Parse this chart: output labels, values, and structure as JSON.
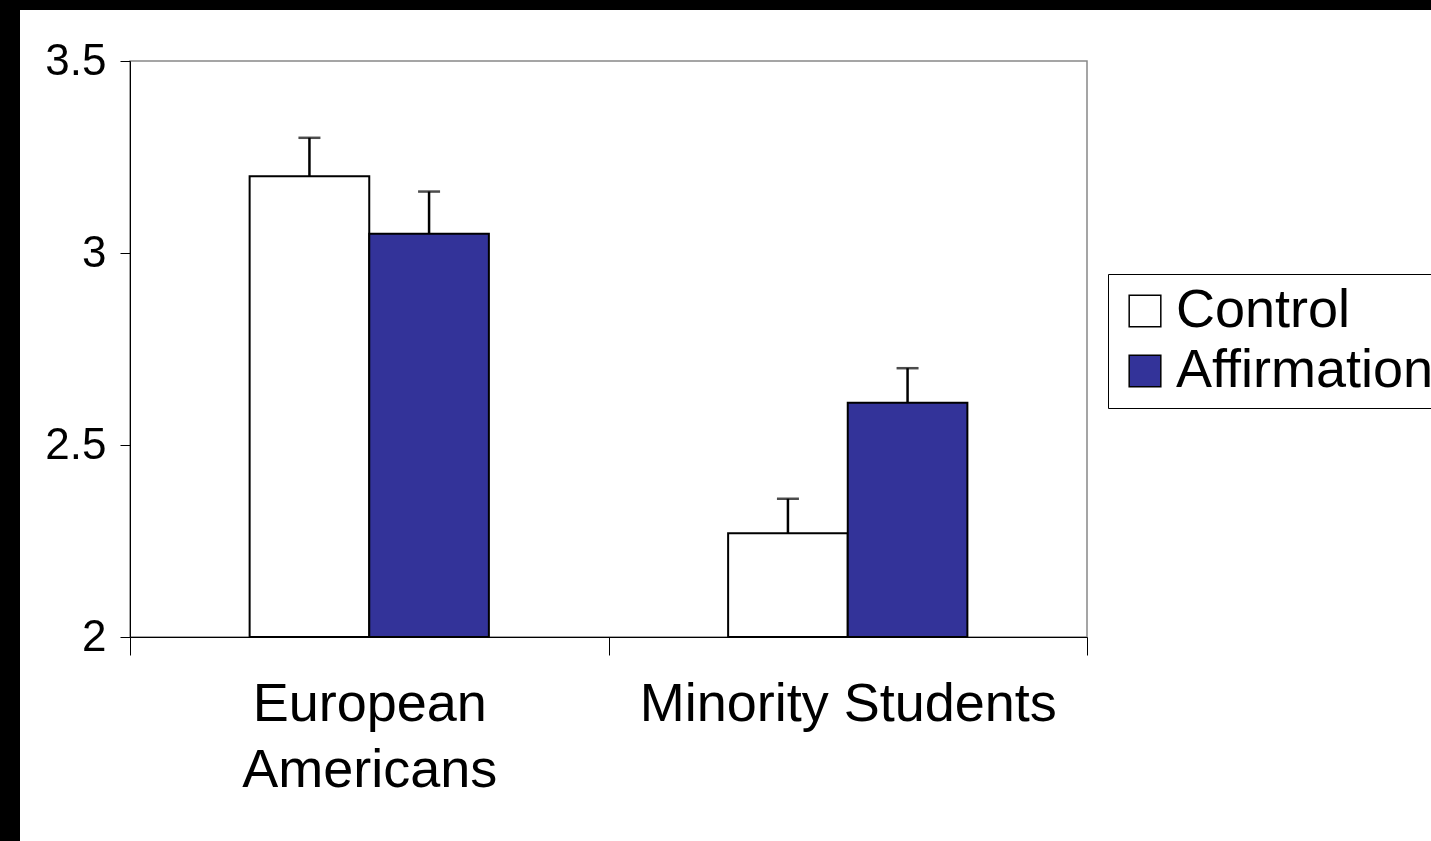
{
  "chart_data": {
    "type": "bar",
    "categories": [
      "European Americans",
      "Minority Students"
    ],
    "series": [
      {
        "name": "Control",
        "color": "#ffffff",
        "values": [
          3.2,
          2.27
        ],
        "errors": [
          [
            3.2,
            3.3
          ],
          [
            2.27,
            2.36
          ]
        ]
      },
      {
        "name": "Affirmation",
        "color": "#333399",
        "values": [
          3.05,
          2.61
        ],
        "errors": [
          [
            3.05,
            3.16
          ],
          [
            2.61,
            2.7
          ]
        ]
      }
    ],
    "ylim": [
      2,
      3.5
    ],
    "yticks": [
      2,
      2.5,
      3,
      3.5
    ],
    "grid": false,
    "legend": "right"
  }
}
